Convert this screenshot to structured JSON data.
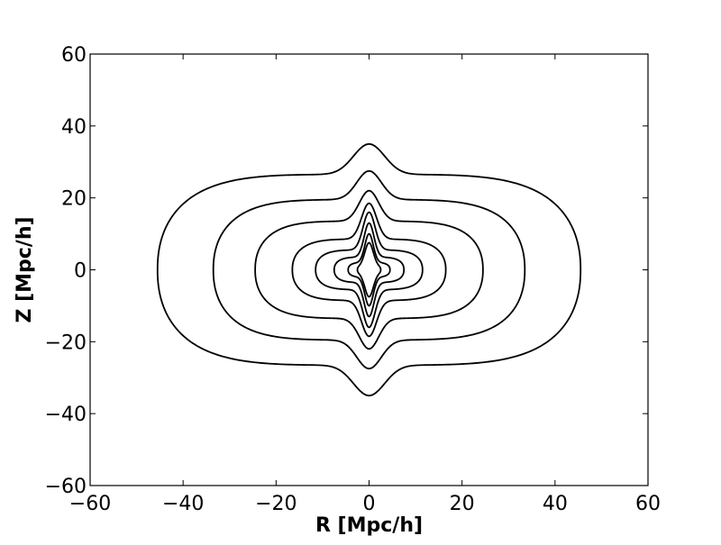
{
  "chart_data": {
    "type": "contour",
    "title": "",
    "xlabel": "R  [Mpc/h]",
    "ylabel": "Z  [Mpc/h]",
    "xlim": [
      -60,
      60
    ],
    "ylim": [
      -60,
      60
    ],
    "xticks": [
      -60,
      -40,
      -20,
      0,
      20,
      40,
      60
    ],
    "yticks": [
      -60,
      -40,
      -20,
      0,
      20,
      40,
      60
    ],
    "xtick_labels": [
      "−60",
      "−40",
      "−20",
      "0",
      "20",
      "40",
      "60"
    ],
    "ytick_labels": [
      "−60",
      "−40",
      "−20",
      "0",
      "20",
      "40",
      "60"
    ],
    "grid": false,
    "legend": "none",
    "line_color": "#000000",
    "description_of_levels": "nested contours, outermost first",
    "contours": [
      {
        "r_half_width": 45.5,
        "z_plateau": 26.5,
        "z_spike": 35.0
      },
      {
        "r_half_width": 33.5,
        "z_plateau": 19.5,
        "z_spike": 27.5
      },
      {
        "r_half_width": 24.5,
        "z_plateau": 13.5,
        "z_spike": 22.0
      },
      {
        "r_half_width": 16.5,
        "z_plateau": 8.5,
        "z_spike": 18.5
      },
      {
        "r_half_width": 11.5,
        "z_plateau": 5.5,
        "z_spike": 16.0
      },
      {
        "r_half_width": 7.5,
        "z_plateau": 3.5,
        "z_spike": 13.0
      },
      {
        "r_half_width": 4.5,
        "z_plateau": 2.0,
        "z_spike": 10.0
      },
      {
        "r_half_width": 2.5,
        "z_plateau": 1.0,
        "z_spike": 7.5
      }
    ]
  }
}
